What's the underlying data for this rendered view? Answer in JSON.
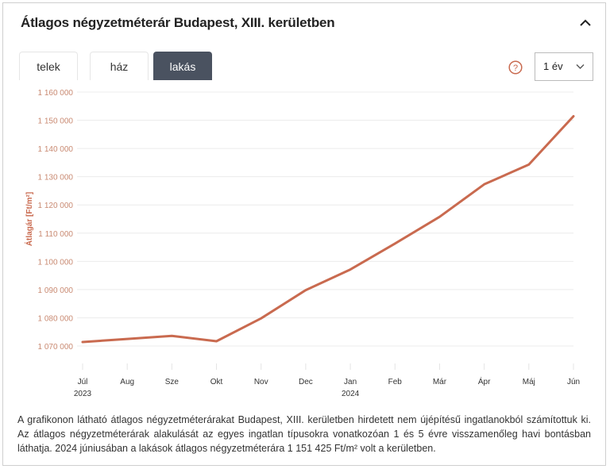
{
  "header": {
    "title": "Átlagos négyzetméterár Budapest, XIII. kerületben"
  },
  "tabs": [
    {
      "label": "telek",
      "active": false
    },
    {
      "label": "ház",
      "active": false
    },
    {
      "label": "lakás",
      "active": true
    }
  ],
  "period_select": {
    "value": "1 év"
  },
  "description": "A grafikonon látható átlagos négyzetméterárakat Budapest, XIII. kerületben hirdetett nem újépítésű ingatlanokból számítottuk ki. Az átlagos négyzetméterárak alakulását az egyes ingatlan típusokra vonatkozóan 1 és 5 évre visszamenőleg havi bontásban láthatja. 2024 júniusában a lakások átlagos négyzetméterára 1 151 425 Ft/m² volt a kerületben.",
  "colors": {
    "line": "#c96a4f",
    "axis_text": "#c98a72",
    "tab_active": "#4a5260"
  },
  "chart_data": {
    "type": "line",
    "title": "",
    "xlabel": "",
    "ylabel": "Átlagár [Ft/m²]",
    "categories": [
      "Júl",
      "Aug",
      "Sze",
      "Okt",
      "Nov",
      "Dec",
      "Jan",
      "Feb",
      "Már",
      "Ápr",
      "Máj",
      "Jún"
    ],
    "year_labels": [
      {
        "index": 0,
        "label": "2023"
      },
      {
        "index": 6,
        "label": "2024"
      }
    ],
    "series": [
      {
        "name": "lakás",
        "values": [
          1071400,
          1072500,
          1073600,
          1071700,
          1079800,
          1089800,
          1097100,
          1106300,
          1115800,
          1127300,
          1134300,
          1151425
        ]
      }
    ],
    "yticks": [
      1070000,
      1080000,
      1090000,
      1100000,
      1110000,
      1120000,
      1130000,
      1140000,
      1150000,
      1160000
    ],
    "ytick_labels": [
      "1 070 000",
      "1 080 000",
      "1 090 000",
      "1 100 000",
      "1 110 000",
      "1 120 000",
      "1 130 000",
      "1 140 000",
      "1 150 000",
      "1 160 000"
    ],
    "ylim": [
      1063000,
      1160000
    ],
    "grid": true,
    "legend": "none"
  }
}
